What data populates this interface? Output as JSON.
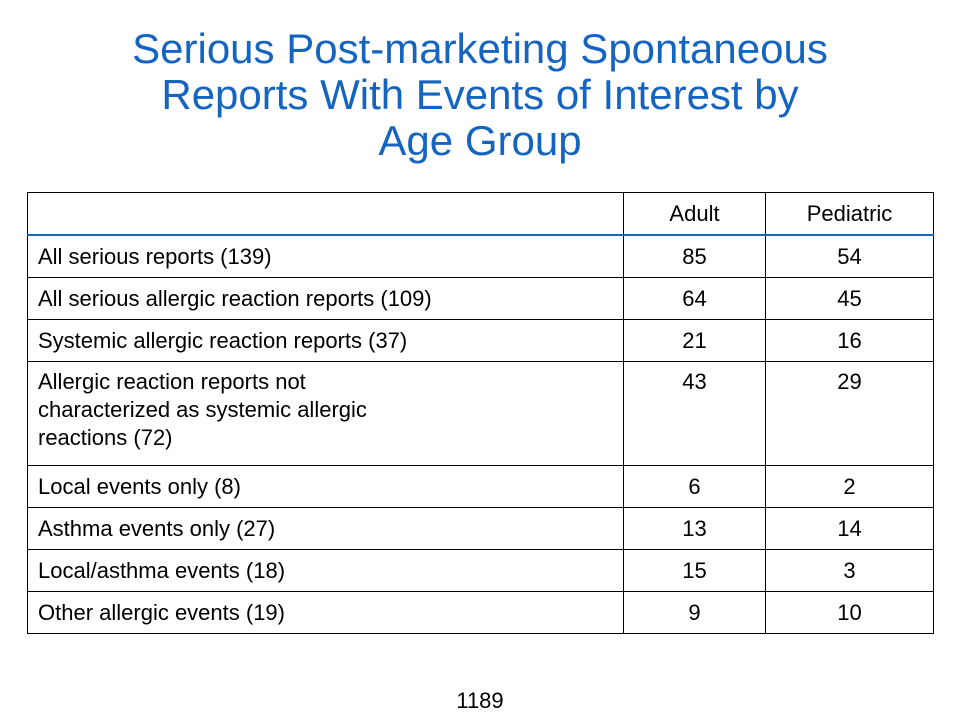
{
  "title": {
    "line1": "Serious Post-marketing Spontaneous",
    "line2": "Reports With Events of Interest by",
    "line3": "Age Group"
  },
  "table": {
    "headers": [
      "",
      "Adult",
      "Pediatric"
    ],
    "rows": [
      {
        "label": "All serious reports (139)",
        "adult": "85",
        "pediatric": "54"
      },
      {
        "label": "All serious allergic reaction reports (109)",
        "adult": "64",
        "pediatric": "45"
      },
      {
        "label": "Systemic allergic reaction reports (37)",
        "adult": "21",
        "pediatric": "16"
      },
      {
        "label_lines": [
          "Allergic reaction reports not",
          "characterized as systemic allergic",
          "reactions (72)"
        ],
        "adult": "43",
        "pediatric": "29"
      },
      {
        "label": "Local events only  (8)",
        "adult": "6",
        "pediatric": "2"
      },
      {
        "label": "Asthma events only  (27)",
        "adult": "13",
        "pediatric": "14"
      },
      {
        "label": "Local/asthma events (18)",
        "adult": "15",
        "pediatric": "3"
      },
      {
        "label": "Other allergic events  (19)",
        "adult": "9",
        "pediatric": "10"
      }
    ]
  },
  "page_number": "1189",
  "colors": {
    "title": "#1565c0",
    "header_rule": "#1565c0",
    "text": "#000000",
    "background": "#ffffff"
  }
}
